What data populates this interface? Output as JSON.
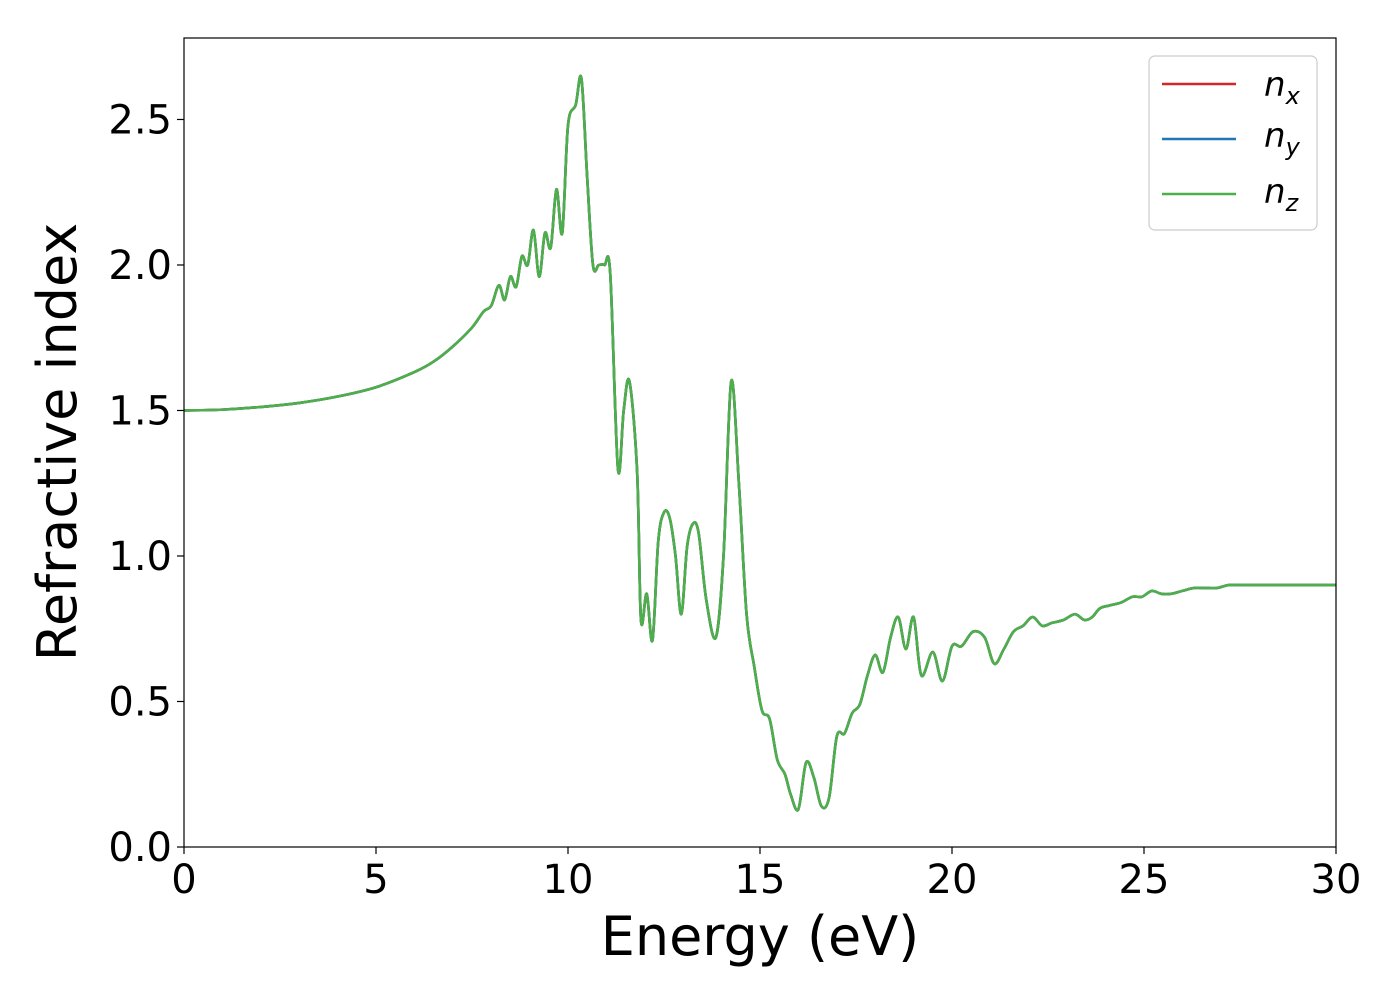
{
  "chart_data": {
    "type": "line",
    "title": "",
    "xlabel": "Energy (eV)",
    "ylabel": "Refractive index",
    "xlim": [
      0,
      30
    ],
    "ylim": [
      0,
      2.78
    ],
    "xticks": [
      0,
      5,
      10,
      15,
      20,
      25,
      30
    ],
    "xtick_labels": [
      "0",
      "5",
      "10",
      "15",
      "20",
      "25",
      "30"
    ],
    "yticks": [
      0.0,
      0.5,
      1.0,
      1.5,
      2.0,
      2.5
    ],
    "ytick_labels": [
      "0.0",
      "0.5",
      "1.0",
      "1.5",
      "2.0",
      "2.5"
    ],
    "grid": false,
    "legend_position": "top-right",
    "colors": {
      "nx": "#d62728",
      "ny": "#1f77b4",
      "nz": "#4daf4a"
    },
    "series": [
      {
        "id": "nx",
        "name_main": "n",
        "name_sub": "x"
      },
      {
        "id": "ny",
        "name_main": "n",
        "name_sub": "y"
      },
      {
        "id": "nz",
        "name_main": "n",
        "name_sub": "z"
      }
    ],
    "x": [
      0,
      1,
      2,
      3,
      4,
      5,
      6,
      6.5,
      7,
      7.5,
      7.8,
      8,
      8.2,
      8.35,
      8.5,
      8.65,
      8.8,
      8.95,
      9.1,
      9.25,
      9.4,
      9.55,
      9.7,
      9.85,
      10,
      10.2,
      10.35,
      10.5,
      10.65,
      10.8,
      10.95,
      11.1,
      11.3,
      11.45,
      11.6,
      11.8,
      11.9,
      12.05,
      12.2,
      12.35,
      12.5,
      12.65,
      12.8,
      12.95,
      13.1,
      13.25,
      13.4,
      13.6,
      13.85,
      14.05,
      14.25,
      14.45,
      14.65,
      14.85,
      15.05,
      15.25,
      15.45,
      15.65,
      15.8,
      16.0,
      16.2,
      16.4,
      16.6,
      16.8,
      17.0,
      17.2,
      17.4,
      17.6,
      17.8,
      18.0,
      18.2,
      18.4,
      18.6,
      18.8,
      19.0,
      19.2,
      19.5,
      19.75,
      20.0,
      20.25,
      20.55,
      20.85,
      21.1,
      21.35,
      21.6,
      21.85,
      22.1,
      22.35,
      22.6,
      22.9,
      23.2,
      23.45,
      23.65,
      23.85,
      24.1,
      24.4,
      24.7,
      24.95,
      25.2,
      25.45,
      25.7,
      26.0,
      26.3,
      26.6,
      26.9,
      27.2,
      27.5,
      27.8,
      28.1,
      28.4,
      28.7,
      29.0,
      29.3,
      29.6,
      29.8,
      30
    ],
    "y": [
      1.5,
      1.503,
      1.512,
      1.526,
      1.548,
      1.58,
      1.632,
      1.668,
      1.72,
      1.785,
      1.84,
      1.86,
      1.93,
      1.88,
      1.96,
      1.925,
      2.03,
      2.0,
      2.12,
      1.96,
      2.11,
      2.06,
      2.26,
      2.11,
      2.48,
      2.55,
      2.64,
      2.3,
      2.0,
      2.0,
      2.0,
      1.97,
      1.3,
      1.5,
      1.6,
      1.29,
      0.78,
      0.87,
      0.71,
      1.05,
      1.15,
      1.13,
      1.0,
      0.8,
      1.03,
      1.11,
      1.08,
      0.85,
      0.72,
      1.0,
      1.6,
      1.25,
      0.8,
      0.62,
      0.47,
      0.44,
      0.3,
      0.25,
      0.18,
      0.13,
      0.29,
      0.24,
      0.14,
      0.17,
      0.38,
      0.39,
      0.46,
      0.49,
      0.59,
      0.66,
      0.6,
      0.72,
      0.79,
      0.68,
      0.79,
      0.59,
      0.67,
      0.57,
      0.69,
      0.69,
      0.74,
      0.72,
      0.63,
      0.68,
      0.74,
      0.76,
      0.79,
      0.76,
      0.77,
      0.78,
      0.8,
      0.78,
      0.79,
      0.82,
      0.83,
      0.84,
      0.86,
      0.86,
      0.88,
      0.87,
      0.87,
      0.88,
      0.89,
      0.89,
      0.89,
      0.9,
      0.9,
      0.9,
      0.9,
      0.9,
      0.9,
      0.9,
      0.9,
      0.9,
      0.9,
      0.9
    ]
  }
}
